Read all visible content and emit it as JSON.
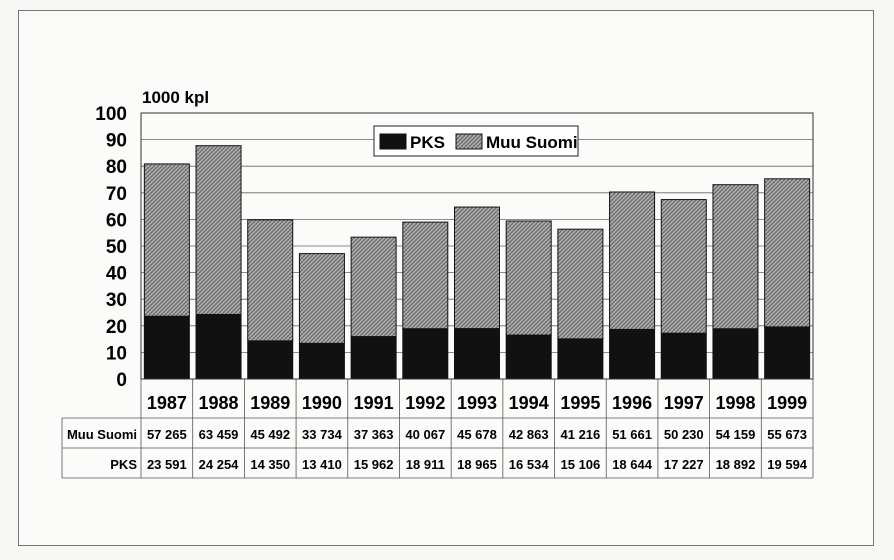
{
  "chart_data": {
    "type": "bar",
    "stacked": true,
    "y_unit_label": "1000 kpl",
    "ylim": [
      0,
      100
    ],
    "yticks": [
      0,
      10,
      20,
      30,
      40,
      50,
      60,
      70,
      80,
      90,
      100
    ],
    "grid": true,
    "legend_placement": "top-center",
    "categories": [
      "1987",
      "1988",
      "1989",
      "1990",
      "1991",
      "1992",
      "1993",
      "1994",
      "1995",
      "1996",
      "1997",
      "1998",
      "1999"
    ],
    "series": [
      {
        "name": "PKS",
        "color": "#111111",
        "values": [
          23.591,
          24.254,
          14.35,
          13.41,
          15.962,
          18.911,
          18.965,
          16.534,
          15.106,
          18.644,
          17.227,
          18.892,
          19.594
        ]
      },
      {
        "name": "Muu Suomi",
        "color": "#9a9a9a",
        "pattern": "crosshatch",
        "values": [
          57.265,
          63.459,
          45.492,
          33.734,
          37.363,
          40.067,
          45.678,
          42.863,
          41.216,
          51.661,
          50.23,
          54.159,
          55.673
        ]
      }
    ],
    "table": {
      "rows": [
        {
          "label": "Muu Suomi",
          "cells": [
            "57 265",
            "63 459",
            "45 492",
            "33 734",
            "37 363",
            "40 067",
            "45 678",
            "42 863",
            "41 216",
            "51 661",
            "50 230",
            "54 159",
            "55 673"
          ]
        },
        {
          "label": "PKS",
          "cells": [
            "23 591",
            "24 254",
            "14 350",
            "13 410",
            "15 962",
            "18 911",
            "18 965",
            "16 534",
            "15 106",
            "18 644",
            "17 227",
            "18 892",
            "19 594"
          ]
        }
      ]
    }
  }
}
